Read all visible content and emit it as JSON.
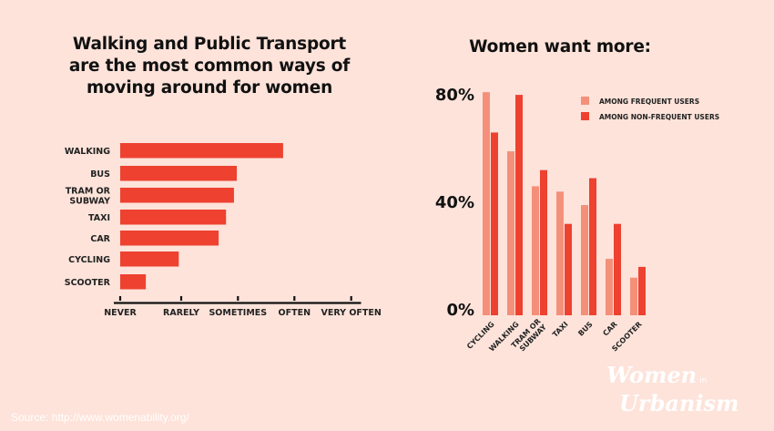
{
  "chart_data": [
    {
      "type": "bar",
      "orientation": "horizontal",
      "title": "Walking and Public Transport are the most common ways of moving around for women",
      "title_lines": [
        "Walking and Public Transport",
        "are the most common ways of",
        "moving around for women"
      ],
      "categories": [
        "WALKING",
        "BUS",
        "TRAM OR SUBWAY",
        "TAXI",
        "CAR",
        "CYCLING",
        "SCOOTER"
      ],
      "category_lines": [
        [
          "WALKING"
        ],
        [
          "BUS"
        ],
        [
          "TRAM OR",
          "SUBWAY"
        ],
        [
          "TAXI"
        ],
        [
          "CAR"
        ],
        [
          "CYCLING"
        ],
        [
          "SCOOTER"
        ]
      ],
      "values": [
        2.8,
        1.98,
        1.93,
        1.79,
        1.66,
        0.96,
        0.42
      ],
      "xlim": [
        0,
        4
      ],
      "x_ticks": [
        0,
        1,
        2,
        3,
        4
      ],
      "x_tick_labels": [
        "NEVER",
        "RARELY",
        "SOMETIMES",
        "OFTEN",
        "VERY OFTEN"
      ],
      "xlabel": "",
      "ylabel": "",
      "grid": false,
      "color": "#EE4130"
    },
    {
      "type": "bar",
      "orientation": "vertical",
      "title": "Women want more:",
      "categories": [
        "CYCLING",
        "WALKING",
        "TRAM OR SUBWAY",
        "TAXI",
        "BUS",
        "CAR",
        "SCOOTER"
      ],
      "category_lines": [
        [
          "CYCLING"
        ],
        [
          "WALKING"
        ],
        [
          "TRAM OR",
          "SUBWAY"
        ],
        [
          "TAXI"
        ],
        [
          "BUS"
        ],
        [
          "CAR"
        ],
        [
          "SCOOTER"
        ]
      ],
      "series": [
        {
          "name": "AMONG FREQUENT USERS",
          "color": "#F4907A",
          "values": [
            83,
            61,
            48,
            46,
            41,
            21,
            14
          ]
        },
        {
          "name": "AMONG NON-FREQUENT USERS",
          "color": "#EE4130",
          "values": [
            68,
            82,
            54,
            34,
            51,
            34,
            18
          ]
        }
      ],
      "ylim": [
        0,
        80
      ],
      "y_ticks": [
        0,
        40,
        80
      ],
      "y_tick_labels": [
        "0%",
        "40%",
        "80%"
      ],
      "xlabel": "",
      "ylabel": "",
      "grid": false,
      "legend": "top-right"
    }
  ],
  "footer": {
    "source": "Source: http://www.womenability.org/",
    "logo_line1": "Women",
    "logo_in": "in",
    "logo_line2": "Urbanism"
  }
}
